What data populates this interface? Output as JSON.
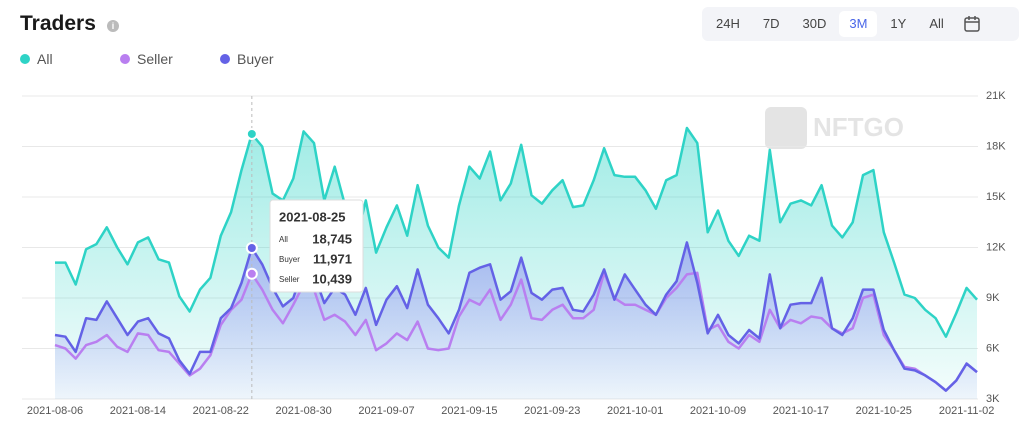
{
  "chart_data": {
    "type": "line",
    "title": "Traders",
    "watermark": "NFTGO",
    "range_buttons": [
      "24H",
      "7D",
      "30D",
      "3M",
      "1Y",
      "All"
    ],
    "selected_range": "3M",
    "categories": [
      "2021-08-06",
      null,
      null,
      null,
      null,
      null,
      null,
      null,
      "2021-08-14",
      null,
      null,
      null,
      null,
      null,
      null,
      null,
      "2021-08-22",
      null,
      null,
      null,
      null,
      null,
      null,
      null,
      "2021-08-30",
      null,
      null,
      null,
      null,
      null,
      null,
      null,
      "2021-09-07",
      null,
      null,
      null,
      null,
      null,
      null,
      null,
      "2021-09-15",
      null,
      null,
      null,
      null,
      null,
      null,
      null,
      "2021-09-23",
      null,
      null,
      null,
      null,
      null,
      null,
      null,
      "2021-10-01",
      null,
      null,
      null,
      null,
      null,
      null,
      null,
      "2021-10-09",
      null,
      null,
      null,
      null,
      null,
      null,
      null,
      "2021-10-17",
      null,
      null,
      null,
      null,
      null,
      null,
      null,
      "2021-10-25",
      null,
      null,
      null,
      null,
      null,
      null,
      null,
      "2021-11-02",
      null
    ],
    "series": [
      {
        "name": "All",
        "color": "#2ed3c6",
        "values": [
          11.1,
          11.1,
          9.8,
          11.9,
          12.2,
          13.2,
          12.0,
          11.0,
          12.3,
          12.6,
          11.3,
          11.1,
          9.1,
          8.2,
          9.5,
          10.2,
          12.7,
          14.1,
          16.6,
          18.745,
          18.0,
          15.2,
          14.8,
          16.1,
          18.9,
          18.2,
          14.8,
          16.8,
          14.5,
          12.2,
          14.8,
          11.7,
          13.2,
          14.5,
          12.7,
          15.7,
          13.3,
          12.0,
          11.4,
          14.5,
          16.8,
          16.1,
          17.7,
          14.8,
          15.8,
          18.1,
          15.1,
          14.6,
          15.4,
          16.0,
          14.4,
          14.5,
          16.0,
          17.9,
          16.3,
          16.2,
          16.2,
          15.4,
          14.3,
          16.0,
          16.3,
          19.1,
          18.2,
          12.9,
          14.2,
          12.4,
          11.5,
          12.7,
          12.4,
          17.8,
          13.5,
          14.6,
          14.8,
          14.5,
          15.7,
          13.3,
          12.6,
          13.5,
          16.3,
          16.6,
          12.9,
          11.1,
          9.2,
          9.0,
          8.3,
          7.8,
          6.7,
          8.1,
          9.6,
          8.9
        ]
      },
      {
        "name": "Seller",
        "color": "#b97ff0",
        "values": [
          6.2,
          6.0,
          5.4,
          6.2,
          6.4,
          6.8,
          6.1,
          5.8,
          6.9,
          6.8,
          5.9,
          5.8,
          5.1,
          4.4,
          4.8,
          5.6,
          7.4,
          8.3,
          8.9,
          10.439,
          9.5,
          8.3,
          7.5,
          8.6,
          9.8,
          9.5,
          7.7,
          8.0,
          7.6,
          6.8,
          7.7,
          5.9,
          6.3,
          6.9,
          6.5,
          7.6,
          6.0,
          5.9,
          6.0,
          7.9,
          8.9,
          8.6,
          9.5,
          7.7,
          8.6,
          10.1,
          7.8,
          7.7,
          8.3,
          8.6,
          7.8,
          7.8,
          8.3,
          10.5,
          9.0,
          8.6,
          8.6,
          8.3,
          8.0,
          9.0,
          9.6,
          10.4,
          10.5,
          7.1,
          7.4,
          6.4,
          6.0,
          6.8,
          6.4,
          8.3,
          7.2,
          7.7,
          7.5,
          7.9,
          7.8,
          7.2,
          6.9,
          7.2,
          9.0,
          9.2,
          6.8,
          5.9,
          4.9,
          4.8,
          4.4,
          4.0,
          3.5,
          4.1,
          5.1,
          4.6
        ]
      },
      {
        "name": "Buyer",
        "color": "#6462e6",
        "values": [
          6.8,
          6.7,
          5.8,
          7.8,
          7.7,
          8.8,
          7.8,
          6.8,
          7.6,
          7.8,
          6.9,
          6.6,
          5.3,
          4.5,
          5.8,
          5.8,
          7.8,
          8.4,
          9.9,
          11.971,
          11.0,
          9.6,
          8.5,
          9.0,
          10.8,
          10.4,
          8.7,
          9.6,
          9.2,
          8.0,
          9.6,
          7.4,
          8.9,
          9.7,
          8.4,
          10.7,
          8.6,
          7.8,
          6.9,
          8.3,
          10.5,
          10.8,
          11.0,
          8.9,
          9.4,
          11.4,
          9.3,
          8.9,
          9.5,
          9.6,
          8.3,
          8.2,
          9.2,
          10.7,
          8.9,
          10.4,
          9.5,
          8.6,
          8.0,
          9.2,
          10.0,
          12.3,
          9.9,
          6.9,
          8.0,
          6.8,
          6.3,
          7.1,
          6.6,
          10.4,
          7.2,
          8.6,
          8.7,
          8.7,
          10.2,
          7.2,
          6.8,
          7.8,
          9.5,
          9.5,
          7.1,
          5.9,
          4.8,
          4.7,
          4.4,
          4.0,
          3.5,
          4.1,
          5.1,
          4.6
        ]
      }
    ],
    "ylim": [
      3,
      21
    ],
    "yticks": [
      {
        "value": 3,
        "label": "3K"
      },
      {
        "value": 6,
        "label": "6K"
      },
      {
        "value": 9,
        "label": "9K"
      },
      {
        "value": 12,
        "label": "12K"
      },
      {
        "value": 15,
        "label": "15K"
      },
      {
        "value": 18,
        "label": "18K"
      },
      {
        "value": 21,
        "label": "21K"
      }
    ],
    "grid": true,
    "tooltip": {
      "date": "2021-08-25",
      "rows": [
        {
          "label": "All",
          "value": "18,745"
        },
        {
          "label": "Buyer",
          "value": "11,971"
        },
        {
          "label": "Seller",
          "value": "10,439"
        }
      ]
    }
  }
}
